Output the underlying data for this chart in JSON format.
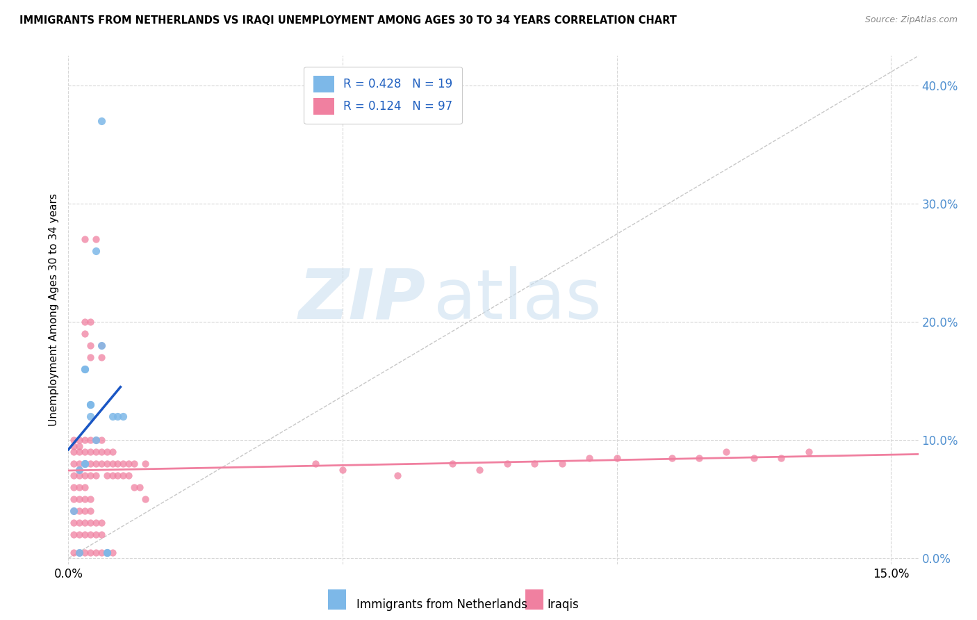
{
  "title": "IMMIGRANTS FROM NETHERLANDS VS IRAQI UNEMPLOYMENT AMONG AGES 30 TO 34 YEARS CORRELATION CHART",
  "source": "Source: ZipAtlas.com",
  "ylabel": "Unemployment Among Ages 30 to 34 years",
  "ytick_values": [
    0.0,
    0.1,
    0.2,
    0.3,
    0.4
  ],
  "ytick_labels": [
    "",
    "10.0%",
    "20.0%",
    "30.0%",
    "40.0%"
  ],
  "xtick_values": [
    0.0,
    0.05,
    0.1,
    0.15
  ],
  "xtick_labels": [
    "0.0%",
    "",
    "",
    "15.0%"
  ],
  "xlim": [
    0.0,
    0.155
  ],
  "ylim": [
    -0.005,
    0.425
  ],
  "legend_label1": "Immigrants from Netherlands",
  "legend_label2": "Iraqis",
  "netherlands_color": "#7db8e8",
  "iraqi_color": "#f080a0",
  "trendline_nl_color": "#1a56c4",
  "trendline_iq_color": "#f080a0",
  "diag_line_color": "#c8c8c8",
  "grid_color": "#d8d8d8",
  "netherlands_points": [
    [
      0.001,
      0.04
    ],
    [
      0.002,
      0.005
    ],
    [
      0.003,
      0.08
    ],
    [
      0.003,
      0.08
    ],
    [
      0.004,
      0.13
    ],
    [
      0.004,
      0.13
    ],
    [
      0.004,
      0.12
    ],
    [
      0.005,
      0.26
    ],
    [
      0.005,
      0.1
    ],
    [
      0.006,
      0.18
    ],
    [
      0.006,
      0.37
    ],
    [
      0.007,
      0.005
    ],
    [
      0.007,
      0.005
    ],
    [
      0.008,
      0.12
    ],
    [
      0.009,
      0.12
    ],
    [
      0.01,
      0.12
    ],
    [
      0.002,
      0.075
    ],
    [
      0.003,
      0.16
    ],
    [
      0.003,
      0.16
    ]
  ],
  "iraqi_points": [
    [
      0.001,
      0.005
    ],
    [
      0.001,
      0.02
    ],
    [
      0.001,
      0.03
    ],
    [
      0.001,
      0.04
    ],
    [
      0.001,
      0.05
    ],
    [
      0.001,
      0.06
    ],
    [
      0.001,
      0.07
    ],
    [
      0.001,
      0.08
    ],
    [
      0.001,
      0.09
    ],
    [
      0.001,
      0.095
    ],
    [
      0.001,
      0.1
    ],
    [
      0.002,
      0.005
    ],
    [
      0.002,
      0.02
    ],
    [
      0.002,
      0.03
    ],
    [
      0.002,
      0.04
    ],
    [
      0.002,
      0.05
    ],
    [
      0.002,
      0.06
    ],
    [
      0.002,
      0.07
    ],
    [
      0.002,
      0.075
    ],
    [
      0.002,
      0.08
    ],
    [
      0.002,
      0.09
    ],
    [
      0.002,
      0.095
    ],
    [
      0.002,
      0.1
    ],
    [
      0.003,
      0.005
    ],
    [
      0.003,
      0.02
    ],
    [
      0.003,
      0.03
    ],
    [
      0.003,
      0.04
    ],
    [
      0.003,
      0.05
    ],
    [
      0.003,
      0.06
    ],
    [
      0.003,
      0.07
    ],
    [
      0.003,
      0.08
    ],
    [
      0.003,
      0.09
    ],
    [
      0.003,
      0.1
    ],
    [
      0.003,
      0.19
    ],
    [
      0.003,
      0.2
    ],
    [
      0.003,
      0.27
    ],
    [
      0.004,
      0.005
    ],
    [
      0.004,
      0.02
    ],
    [
      0.004,
      0.03
    ],
    [
      0.004,
      0.04
    ],
    [
      0.004,
      0.05
    ],
    [
      0.004,
      0.07
    ],
    [
      0.004,
      0.08
    ],
    [
      0.004,
      0.09
    ],
    [
      0.004,
      0.1
    ],
    [
      0.004,
      0.17
    ],
    [
      0.004,
      0.18
    ],
    [
      0.004,
      0.2
    ],
    [
      0.005,
      0.005
    ],
    [
      0.005,
      0.02
    ],
    [
      0.005,
      0.03
    ],
    [
      0.005,
      0.07
    ],
    [
      0.005,
      0.08
    ],
    [
      0.005,
      0.09
    ],
    [
      0.005,
      0.1
    ],
    [
      0.005,
      0.27
    ],
    [
      0.006,
      0.005
    ],
    [
      0.006,
      0.02
    ],
    [
      0.006,
      0.03
    ],
    [
      0.006,
      0.08
    ],
    [
      0.006,
      0.09
    ],
    [
      0.006,
      0.1
    ],
    [
      0.006,
      0.17
    ],
    [
      0.006,
      0.18
    ],
    [
      0.007,
      0.005
    ],
    [
      0.007,
      0.07
    ],
    [
      0.007,
      0.08
    ],
    [
      0.007,
      0.09
    ],
    [
      0.008,
      0.005
    ],
    [
      0.008,
      0.07
    ],
    [
      0.008,
      0.08
    ],
    [
      0.008,
      0.09
    ],
    [
      0.009,
      0.07
    ],
    [
      0.009,
      0.08
    ],
    [
      0.01,
      0.07
    ],
    [
      0.01,
      0.08
    ],
    [
      0.011,
      0.07
    ],
    [
      0.011,
      0.08
    ],
    [
      0.012,
      0.06
    ],
    [
      0.012,
      0.08
    ],
    [
      0.013,
      0.06
    ],
    [
      0.014,
      0.05
    ],
    [
      0.014,
      0.08
    ],
    [
      0.045,
      0.08
    ],
    [
      0.05,
      0.075
    ],
    [
      0.06,
      0.07
    ],
    [
      0.07,
      0.08
    ],
    [
      0.075,
      0.075
    ],
    [
      0.08,
      0.08
    ],
    [
      0.085,
      0.08
    ],
    [
      0.09,
      0.08
    ],
    [
      0.095,
      0.085
    ],
    [
      0.1,
      0.085
    ],
    [
      0.11,
      0.085
    ],
    [
      0.115,
      0.085
    ],
    [
      0.12,
      0.09
    ],
    [
      0.125,
      0.085
    ],
    [
      0.13,
      0.085
    ],
    [
      0.135,
      0.09
    ]
  ]
}
